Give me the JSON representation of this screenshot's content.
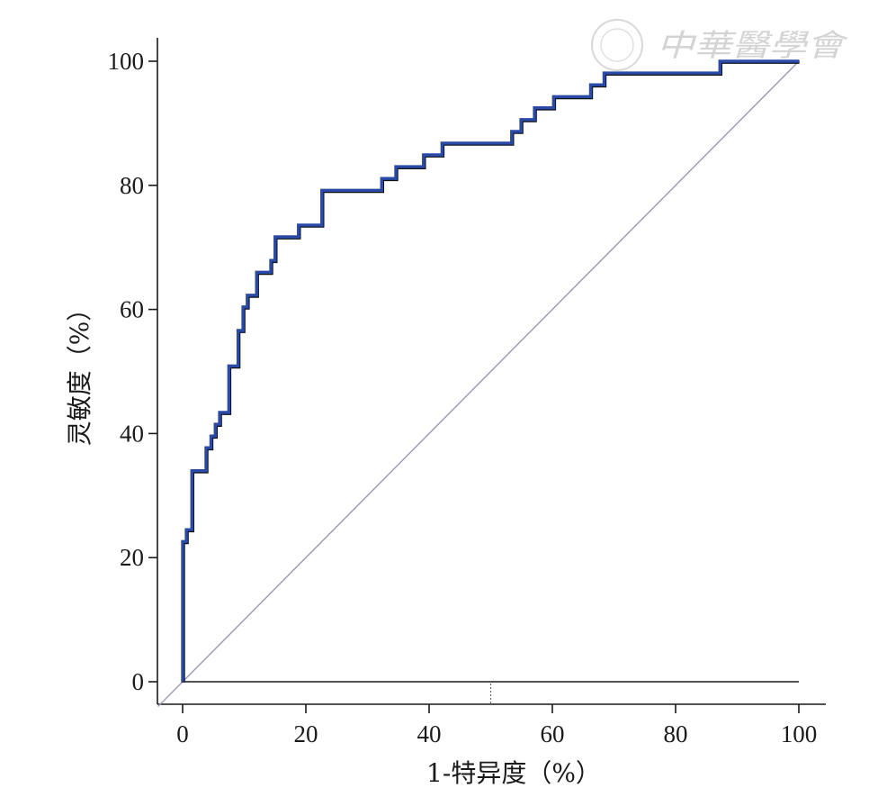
{
  "watermark": {
    "text": "中華醫學會"
  },
  "chart_data": {
    "type": "line",
    "title": "",
    "xlabel": "1-特异度（%）",
    "ylabel": "灵敏度（%）",
    "xlim": [
      0,
      100
    ],
    "ylim": [
      0,
      100
    ],
    "x_ticks": [
      0,
      20,
      40,
      60,
      80,
      100
    ],
    "y_ticks": [
      0,
      20,
      40,
      60,
      80,
      100
    ],
    "grid": false,
    "series": [
      {
        "color": "#2a4aa8",
        "style": "step",
        "points": [
          [
            0,
            0
          ],
          [
            0,
            22.6
          ],
          [
            0.6,
            22.6
          ],
          [
            0.6,
            24.5
          ],
          [
            1.5,
            24.5
          ],
          [
            1.5,
            34
          ],
          [
            3.8,
            34
          ],
          [
            3.8,
            37.7
          ],
          [
            4.6,
            37.7
          ],
          [
            4.6,
            39.6
          ],
          [
            5.3,
            39.6
          ],
          [
            5.3,
            41.5
          ],
          [
            6,
            41.5
          ],
          [
            6,
            43.4
          ],
          [
            7.5,
            43.4
          ],
          [
            7.5,
            50.9
          ],
          [
            9,
            50.9
          ],
          [
            9,
            56.6
          ],
          [
            9.8,
            56.6
          ],
          [
            9.8,
            60.4
          ],
          [
            10.5,
            60.4
          ],
          [
            10.5,
            62.3
          ],
          [
            12,
            62.3
          ],
          [
            12,
            66
          ],
          [
            14.3,
            66
          ],
          [
            14.3,
            67.9
          ],
          [
            15,
            67.9
          ],
          [
            15,
            71.7
          ],
          [
            18.8,
            71.7
          ],
          [
            18.8,
            73.6
          ],
          [
            22.6,
            73.6
          ],
          [
            22.6,
            79.2
          ],
          [
            32.3,
            79.2
          ],
          [
            32.3,
            81.1
          ],
          [
            34.6,
            81.1
          ],
          [
            34.6,
            83
          ],
          [
            39.1,
            83
          ],
          [
            39.1,
            84.9
          ],
          [
            42.1,
            84.9
          ],
          [
            42.1,
            86.8
          ],
          [
            53.4,
            86.8
          ],
          [
            53.4,
            88.7
          ],
          [
            54.9,
            88.7
          ],
          [
            54.9,
            90.6
          ],
          [
            57.1,
            90.6
          ],
          [
            57.1,
            92.5
          ],
          [
            60.2,
            92.5
          ],
          [
            60.2,
            94.3
          ],
          [
            66.2,
            94.3
          ],
          [
            66.2,
            96.2
          ],
          [
            68.4,
            96.2
          ],
          [
            68.4,
            98.1
          ],
          [
            87.2,
            98.1
          ],
          [
            87.2,
            100
          ],
          [
            100,
            100
          ]
        ]
      },
      {
        "color": "#9a98b8",
        "style": "diagonal",
        "points": [
          [
            -4,
            -4
          ],
          [
            100,
            100
          ]
        ]
      }
    ],
    "baseline_y": 0,
    "marker_x": 50
  }
}
